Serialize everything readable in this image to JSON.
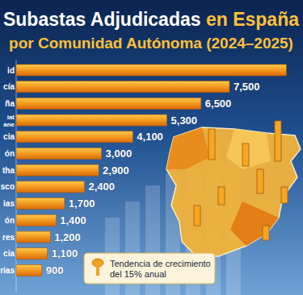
{
  "chart_data": {
    "type": "bar",
    "orientation": "horizontal",
    "title": "Subastas Adjudicadas en España",
    "subtitle": "por Comunidad Autónoma (2024–2025)",
    "categories": [
      "id",
      "cía",
      "ña",
      "iat ane",
      "cia",
      "ón",
      "tha",
      "sco",
      "ias",
      "ón",
      "res",
      "cia",
      "rias"
    ],
    "values": [
      9500,
      7500,
      6500,
      5300,
      4100,
      3000,
      2900,
      2400,
      1700,
      1400,
      1200,
      1100,
      900
    ],
    "value_labels": [
      null,
      "7,500",
      "6,500",
      "5,300",
      "4,100",
      "3,000",
      "2,900",
      "2,400",
      "1,700",
      "1,400",
      "1,200",
      "1,100",
      "900"
    ],
    "data_labels": true,
    "tick_labels": "y",
    "color": "#f29a1f",
    "xlim": [
      0,
      10000
    ],
    "annotation": "Tendencia de crecimiento del 15% anual"
  }
}
